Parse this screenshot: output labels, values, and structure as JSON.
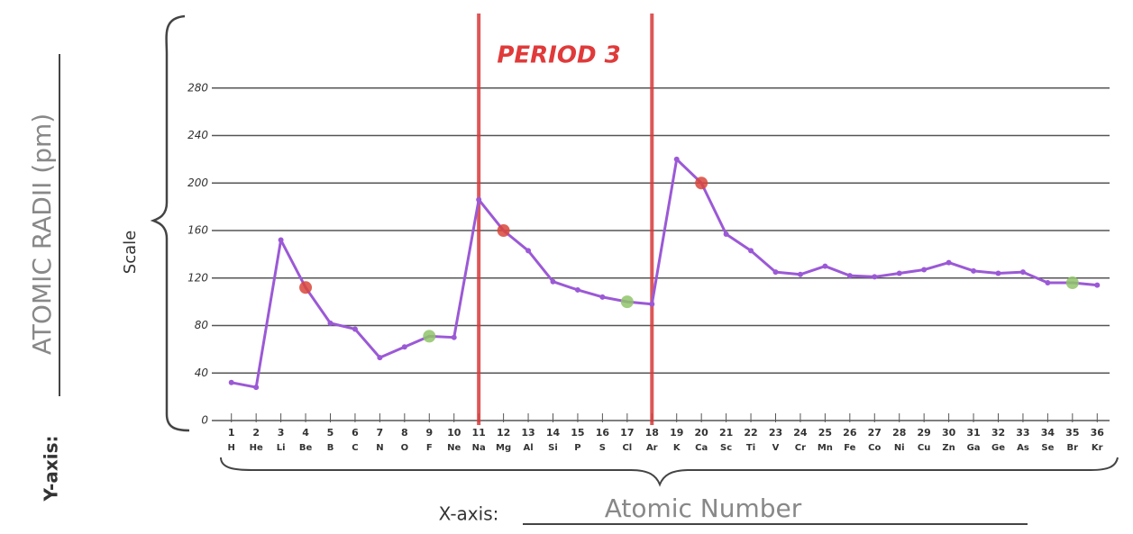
{
  "chart_data": {
    "type": "line",
    "y_axis_prefix": "Y-axis:",
    "y_axis_label": "ATOMIC RADII (pm)",
    "scale_label": "Scale",
    "x_axis_prefix": "X-axis:",
    "x_axis_label": "Atomic Number",
    "annotation": "PERIOD 3",
    "x": [
      1,
      2,
      3,
      4,
      5,
      6,
      7,
      8,
      9,
      10,
      11,
      12,
      13,
      14,
      15,
      16,
      17,
      18,
      19,
      20,
      21,
      22,
      23,
      24,
      25,
      26,
      27,
      28,
      29,
      30,
      31,
      32,
      33,
      34,
      35,
      36
    ],
    "elements": [
      "H",
      "He",
      "Li",
      "Be",
      "B",
      "C",
      "N",
      "O",
      "F",
      "Ne",
      "Na",
      "Mg",
      "Al",
      "Si",
      "P",
      "S",
      "Cl",
      "Ar",
      "K",
      "Ca",
      "Sc",
      "Ti",
      "V",
      "Cr",
      "Mn",
      "Fe",
      "Co",
      "Ni",
      "Cu",
      "Zn",
      "Ga",
      "Ge",
      "As",
      "Se",
      "Br",
      "Kr"
    ],
    "series": [
      {
        "color": "#9b59d6",
        "values": [
          32,
          28,
          152,
          112,
          82,
          77,
          53,
          62,
          71,
          70,
          186,
          160,
          143,
          117,
          110,
          104,
          100,
          98,
          220,
          200,
          157,
          143,
          125,
          123,
          130,
          122,
          121,
          124,
          127,
          133,
          126,
          124,
          125,
          116,
          116,
          114
        ]
      }
    ],
    "highlights": [
      {
        "color": "#d9463b",
        "indices": [
          3,
          11,
          19
        ]
      },
      {
        "color": "#8fc46a",
        "indices": [
          8,
          16,
          34
        ]
      }
    ],
    "period_markers": {
      "color": "#d93a3a",
      "x": [
        11,
        18
      ]
    },
    "xlim": [
      0.5,
      36.5
    ],
    "ylim": [
      0,
      320
    ],
    "yticks": [
      0,
      40,
      80,
      120,
      160,
      200,
      240,
      280
    ],
    "grid": true
  }
}
